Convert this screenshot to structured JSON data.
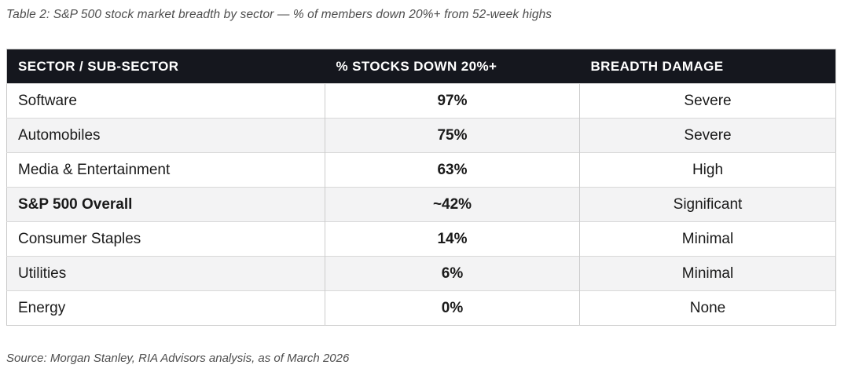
{
  "title": "Table 2: S&P 500 stock market breadth by sector — % of members down 20%+ from 52-week highs",
  "source": "Source: Morgan Stanley, RIA Advisors analysis, as of March 2026",
  "colors": {
    "header_bg": "#15171e",
    "header_text": "#ffffff",
    "alt_row_bg": "#f3f3f4",
    "border": "#cccccc",
    "negative_red": "#c0392b",
    "positive_green": "#1e7d3c",
    "muted_text": "#4d4d4d"
  },
  "chart_data": {
    "type": "table",
    "title": "Table 2: S&P 500 stock market breadth by sector — % of members down 20%+ from 52-week highs",
    "columns": [
      "SECTOR / SUB-SECTOR",
      "% STOCKS DOWN 20%+",
      "BREADTH DAMAGE"
    ],
    "rows": [
      {
        "sector": "Software",
        "pct_down": "97%",
        "damage": "Severe",
        "tone": "red",
        "emphasis": false
      },
      {
        "sector": "Automobiles",
        "pct_down": "75%",
        "damage": "Severe",
        "tone": "red",
        "emphasis": false
      },
      {
        "sector": "Media & Entertainment",
        "pct_down": "63%",
        "damage": "High",
        "tone": "red",
        "emphasis": false
      },
      {
        "sector": "S&P 500 Overall",
        "pct_down": "~42%",
        "damage": "Significant",
        "tone": "red",
        "emphasis": true
      },
      {
        "sector": "Consumer Staples",
        "pct_down": "14%",
        "damage": "Minimal",
        "tone": "green",
        "emphasis": false
      },
      {
        "sector": "Utilities",
        "pct_down": "6%",
        "damage": "Minimal",
        "tone": "green",
        "emphasis": false
      },
      {
        "sector": "Energy",
        "pct_down": "0%",
        "damage": "None",
        "tone": "green",
        "emphasis": false
      }
    ],
    "pct_values_numeric": [
      97,
      75,
      63,
      42,
      14,
      6,
      0
    ],
    "source": "Source: Morgan Stanley, RIA Advisors analysis, as of March 2026"
  }
}
